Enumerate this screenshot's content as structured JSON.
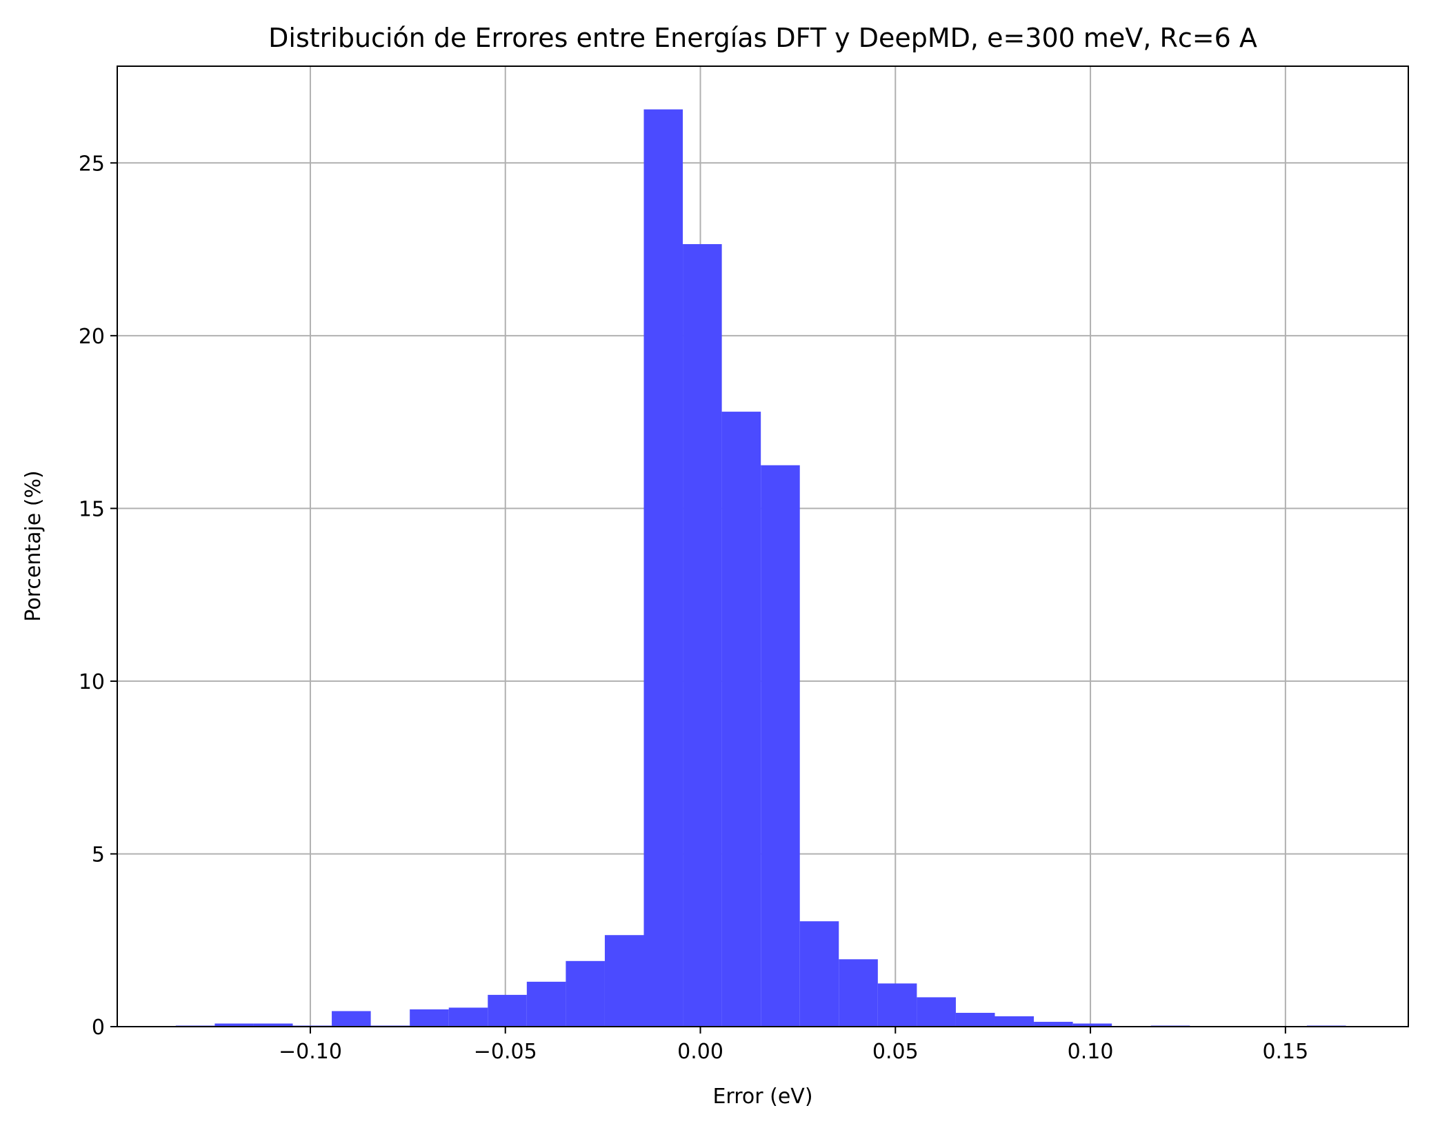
{
  "chart_data": {
    "type": "bar",
    "subtype": "histogram",
    "title": "Distribución de Errores entre Energías DFT y DeepMD, e=300 meV, Rc=6 A",
    "xlabel": "Error (eV)",
    "ylabel": "Porcentaje (%)",
    "xlim": [
      -0.1495,
      0.1815
    ],
    "ylim": [
      0,
      27.8
    ],
    "grid": true,
    "bar_color": "#4b4bff",
    "x_ticks": [
      {
        "value": -0.1,
        "label": "−0.10"
      },
      {
        "value": -0.05,
        "label": "−0.05"
      },
      {
        "value": 0.0,
        "label": "0.00"
      },
      {
        "value": 0.05,
        "label": "0.05"
      },
      {
        "value": 0.1,
        "label": "0.10"
      },
      {
        "value": 0.15,
        "label": "0.15"
      }
    ],
    "y_ticks": [
      {
        "value": 0,
        "label": "0"
      },
      {
        "value": 5,
        "label": "5"
      },
      {
        "value": 10,
        "label": "10"
      },
      {
        "value": 15,
        "label": "15"
      },
      {
        "value": 20,
        "label": "20"
      },
      {
        "value": 25,
        "label": "25"
      }
    ],
    "bins": [
      {
        "x0": -0.1345,
        "x1": -0.1245,
        "value": 0.03
      },
      {
        "x0": -0.1245,
        "x1": -0.1145,
        "value": 0.09
      },
      {
        "x0": -0.1145,
        "x1": -0.1045,
        "value": 0.09
      },
      {
        "x0": -0.1045,
        "x1": -0.0945,
        "value": 0.03
      },
      {
        "x0": -0.0945,
        "x1": -0.0845,
        "value": 0.45
      },
      {
        "x0": -0.0845,
        "x1": -0.0745,
        "value": 0.03
      },
      {
        "x0": -0.0745,
        "x1": -0.0645,
        "value": 0.5
      },
      {
        "x0": -0.0645,
        "x1": -0.0545,
        "value": 0.55
      },
      {
        "x0": -0.0545,
        "x1": -0.0445,
        "value": 0.92
      },
      {
        "x0": -0.0445,
        "x1": -0.0345,
        "value": 1.3
      },
      {
        "x0": -0.0345,
        "x1": -0.0245,
        "value": 1.9
      },
      {
        "x0": -0.0245,
        "x1": -0.0145,
        "value": 2.65
      },
      {
        "x0": -0.0145,
        "x1": -0.0045,
        "value": 26.55
      },
      {
        "x0": -0.0045,
        "x1": 0.0055,
        "value": 22.65
      },
      {
        "x0": 0.0055,
        "x1": 0.0155,
        "value": 17.8
      },
      {
        "x0": 0.0155,
        "x1": 0.0255,
        "value": 16.25
      },
      {
        "x0": 0.0255,
        "x1": 0.0355,
        "value": 3.05
      },
      {
        "x0": 0.0355,
        "x1": 0.0455,
        "value": 1.95
      },
      {
        "x0": 0.0455,
        "x1": 0.0555,
        "value": 1.25
      },
      {
        "x0": 0.0555,
        "x1": 0.0655,
        "value": 0.85
      },
      {
        "x0": 0.0655,
        "x1": 0.0755,
        "value": 0.4
      },
      {
        "x0": 0.0755,
        "x1": 0.0855,
        "value": 0.3
      },
      {
        "x0": 0.0855,
        "x1": 0.0955,
        "value": 0.14
      },
      {
        "x0": 0.0955,
        "x1": 0.1055,
        "value": 0.09
      },
      {
        "x0": 0.1055,
        "x1": 0.1155,
        "value": 0.0
      },
      {
        "x0": 0.1155,
        "x1": 0.1255,
        "value": 0.03
      },
      {
        "x0": 0.1255,
        "x1": 0.1355,
        "value": 0.0
      },
      {
        "x0": 0.1355,
        "x1": 0.1455,
        "value": 0.0
      },
      {
        "x0": 0.1455,
        "x1": 0.1555,
        "value": 0.0
      },
      {
        "x0": 0.1555,
        "x1": 0.1655,
        "value": 0.03
      }
    ]
  }
}
